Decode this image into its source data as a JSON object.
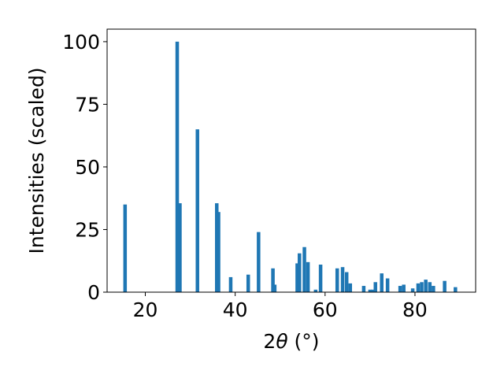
{
  "chart_data": {
    "type": "bar",
    "xlabel_prefix": "2",
    "xlabel_theta": "θ",
    "xlabel_suffix": " (°)",
    "ylabel": "Intensities (scaled)",
    "xlim": [
      11.5,
      93.5
    ],
    "ylim": [
      0,
      105
    ],
    "xticks": [
      20,
      40,
      60,
      80
    ],
    "yticks": [
      0,
      25,
      50,
      75,
      100
    ],
    "bar_color": "#1f77b4",
    "grid": false,
    "x": [
      15.5,
      27.1,
      27.7,
      31.6,
      35.9,
      36.3,
      39.0,
      42.9,
      45.2,
      48.4,
      48.8,
      53.8,
      54.3,
      55.4,
      56.2,
      57.9,
      59.0,
      62.7,
      63.9,
      64.8,
      65.6,
      68.6,
      70.0,
      70.6,
      71.2,
      72.6,
      73.9,
      76.7,
      77.5,
      79.5,
      80.7,
      81.5,
      82.4,
      83.3,
      84.1,
      86.6,
      89.0
    ],
    "values": [
      35,
      100,
      35.5,
      65,
      35.5,
      32,
      6,
      7,
      24,
      9.5,
      3,
      11.5,
      15.5,
      18,
      12,
      1,
      11,
      9.5,
      10,
      8,
      3.5,
      2.5,
      1,
      1,
      4,
      7.5,
      5.5,
      2.5,
      3,
      1.5,
      3.5,
      4,
      5,
      4,
      2.5,
      4.5,
      2
    ]
  }
}
